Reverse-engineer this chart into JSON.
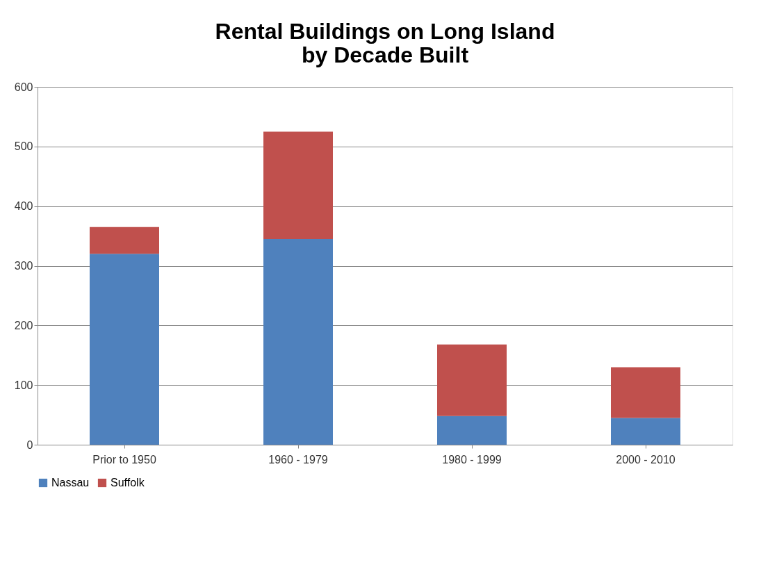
{
  "chart_data": {
    "type": "bar",
    "title": "Rental Buildings on Long Island\nby Decade Built",
    "stacked": true,
    "categories": [
      "Prior to 1950",
      "1960 - 1979",
      "1980 - 1999",
      "2000 - 2010"
    ],
    "series": [
      {
        "name": "Nassau",
        "color": "#4f81bd",
        "values": [
          320,
          345,
          48,
          45
        ]
      },
      {
        "name": "Suffolk",
        "color": "#c0504d",
        "values": [
          45,
          180,
          120,
          85
        ]
      }
    ],
    "ylim": [
      0,
      600
    ],
    "yticks": [
      0,
      100,
      200,
      300,
      400,
      500,
      600
    ],
    "grid": "y",
    "legend": "bottom"
  }
}
